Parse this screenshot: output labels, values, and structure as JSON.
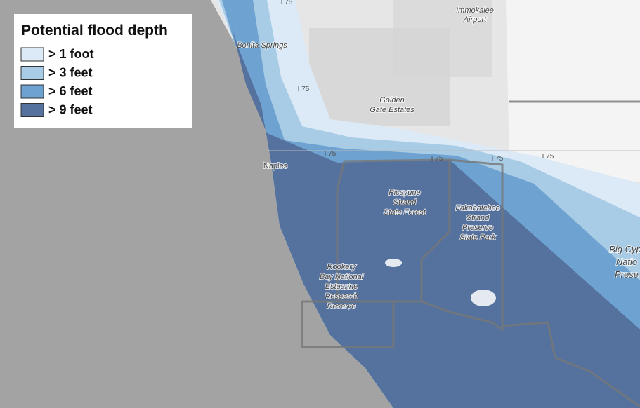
{
  "legend": {
    "title": "Potential flood depth",
    "items": [
      {
        "label": "> 1 foot",
        "color": "#dce9f6"
      },
      {
        "label": "> 3 feet",
        "color": "#a8cbe6"
      },
      {
        "label": "> 6 feet",
        "color": "#6ea2d0"
      },
      {
        "label": "> 9 feet",
        "color": "#55729f"
      }
    ]
  },
  "places": {
    "immokalee": [
      "Immokalee",
      "Airport"
    ],
    "bonita": "Bonita Springs",
    "golden_gate": [
      "Golden",
      "Gate Estates"
    ],
    "naples": "Naples",
    "interstate": "I 75",
    "picayune": [
      "Picayune",
      "Strand",
      "State Forest"
    ],
    "fakahatchee": [
      "Fakahatchee",
      "Strand",
      "Preserve",
      "State Park"
    ],
    "big_cypress": [
      "Big Cyp",
      "Natio",
      "Prese"
    ],
    "rookery": [
      "Rookery",
      "Bay National",
      "Estuarine",
      "Research",
      "Reserve"
    ]
  }
}
